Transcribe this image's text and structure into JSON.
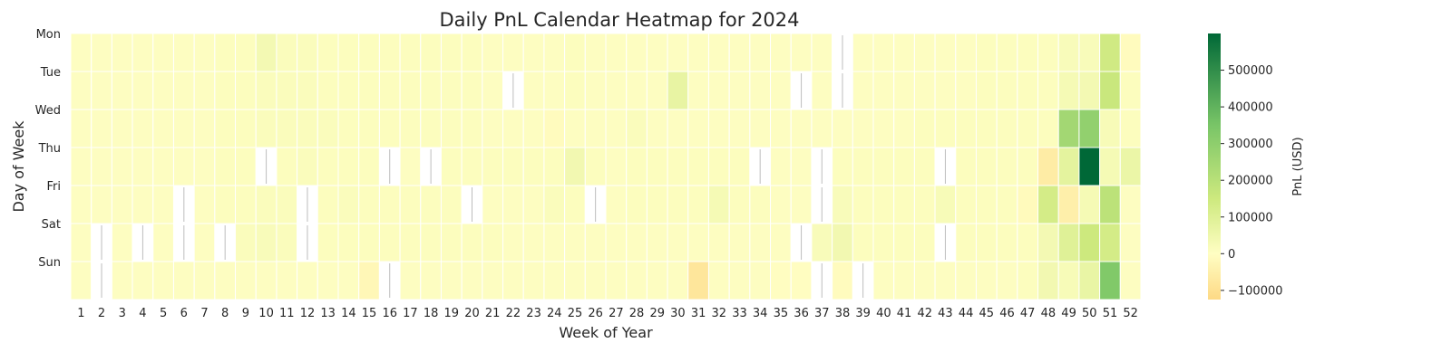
{
  "chart_data": {
    "type": "heatmap",
    "title": "Daily PnL Calendar Heatmap for 2024",
    "xlabel": "Week of Year",
    "ylabel": "Day of Week",
    "y_tick_labels": [
      "Mon",
      "Tue",
      "Wed",
      "Thu",
      "Fri",
      "Sat",
      "Sun"
    ],
    "weeks": [
      1,
      2,
      3,
      4,
      5,
      6,
      7,
      8,
      9,
      10,
      11,
      12,
      13,
      14,
      15,
      16,
      17,
      18,
      19,
      20,
      21,
      22,
      23,
      24,
      25,
      26,
      27,
      28,
      29,
      30,
      31,
      32,
      33,
      34,
      35,
      36,
      37,
      38,
      39,
      40,
      41,
      42,
      43,
      44,
      45,
      46,
      47,
      48,
      49,
      50,
      51,
      52
    ],
    "grid": false,
    "colorbar": {
      "label": "PnL (USD)",
      "range": [
        -125000,
        600000
      ],
      "ticks": [
        -100000,
        0,
        100000,
        200000,
        300000,
        400000,
        500000
      ],
      "tick_labels": [
        "−100000",
        "0",
        "100000",
        "200000",
        "300000",
        "400000",
        "500000"
      ],
      "colors": [
        "#fdd985",
        "#fffec3",
        "#cde97e",
        "#79c567",
        "#006837"
      ]
    },
    "values": [
      [
        5000,
        5000,
        5000,
        5000,
        5000,
        5000,
        5000
      ],
      [
        5000,
        5000,
        5000,
        5000,
        5000,
        null,
        null
      ],
      [
        5000,
        5000,
        5000,
        5000,
        5000,
        5000,
        5000
      ],
      [
        5000,
        5000,
        5000,
        5000,
        5000,
        null,
        5000
      ],
      [
        5000,
        5000,
        5000,
        5000,
        5000,
        5000,
        5000
      ],
      [
        5000,
        5000,
        5000,
        5000,
        null,
        null,
        5000
      ],
      [
        5000,
        5000,
        5000,
        5000,
        5000,
        5000,
        5000
      ],
      [
        10000,
        10000,
        10000,
        10000,
        10000,
        null,
        5000
      ],
      [
        10000,
        10000,
        10000,
        10000,
        10000,
        15000,
        5000
      ],
      [
        35000,
        15000,
        15000,
        null,
        15000,
        20000,
        5000
      ],
      [
        15000,
        15000,
        15000,
        10000,
        15000,
        15000,
        5000
      ],
      [
        15000,
        15000,
        15000,
        15000,
        null,
        null,
        5000
      ],
      [
        10000,
        10000,
        15000,
        10000,
        10000,
        10000,
        5000
      ],
      [
        10000,
        10000,
        10000,
        10000,
        15000,
        10000,
        5000
      ],
      [
        10000,
        10000,
        10000,
        10000,
        10000,
        10000,
        -25000
      ],
      [
        10000,
        10000,
        10000,
        null,
        10000,
        10000,
        null
      ],
      [
        10000,
        10000,
        10000,
        5000,
        10000,
        10000,
        5000
      ],
      [
        10000,
        10000,
        10000,
        null,
        10000,
        10000,
        5000
      ],
      [
        10000,
        10000,
        10000,
        10000,
        10000,
        10000,
        5000
      ],
      [
        10000,
        10000,
        10000,
        10000,
        null,
        10000,
        5000
      ],
      [
        5000,
        5000,
        5000,
        10000,
        5000,
        10000,
        5000
      ],
      [
        5000,
        null,
        5000,
        10000,
        5000,
        5000,
        5000
      ],
      [
        5000,
        5000,
        5000,
        10000,
        5000,
        5000,
        5000
      ],
      [
        5000,
        5000,
        -10000,
        10000,
        15000,
        5000,
        5000
      ],
      [
        10000,
        10000,
        5000,
        40000,
        10000,
        5000,
        5000
      ],
      [
        5000,
        5000,
        5000,
        10000,
        null,
        5000,
        5000
      ],
      [
        5000,
        5000,
        5000,
        5000,
        5000,
        5000,
        5000
      ],
      [
        5000,
        5000,
        15000,
        10000,
        10000,
        5000,
        5000
      ],
      [
        5000,
        5000,
        5000,
        10000,
        10000,
        5000,
        5000
      ],
      [
        5000,
        70000,
        5000,
        10000,
        10000,
        5000,
        5000
      ],
      [
        5000,
        5000,
        5000,
        10000,
        10000,
        5000,
        -80000
      ],
      [
        5000,
        5000,
        5000,
        10000,
        30000,
        5000,
        5000
      ],
      [
        5000,
        5000,
        5000,
        10000,
        10000,
        5000,
        5000
      ],
      [
        5000,
        5000,
        5000,
        null,
        10000,
        5000,
        5000
      ],
      [
        5000,
        5000,
        5000,
        5000,
        5000,
        5000,
        -5000
      ],
      [
        5000,
        null,
        5000,
        5000,
        5000,
        null,
        -5000
      ],
      [
        5000,
        5000,
        5000,
        null,
        null,
        20000,
        null
      ],
      [
        null,
        null,
        5000,
        10000,
        20000,
        40000,
        -10000
      ],
      [
        5000,
        5000,
        5000,
        10000,
        10000,
        10000,
        null
      ],
      [
        5000,
        5000,
        5000,
        10000,
        10000,
        10000,
        5000
      ],
      [
        5000,
        5000,
        5000,
        10000,
        10000,
        10000,
        5000
      ],
      [
        5000,
        5000,
        10000,
        10000,
        10000,
        10000,
        5000
      ],
      [
        5000,
        5000,
        10000,
        null,
        25000,
        null,
        5000
      ],
      [
        5000,
        5000,
        10000,
        10000,
        10000,
        10000,
        5000
      ],
      [
        10000,
        10000,
        10000,
        10000,
        10000,
        10000,
        5000
      ],
      [
        10000,
        10000,
        10000,
        10000,
        10000,
        10000,
        5000
      ],
      [
        10000,
        10000,
        10000,
        10000,
        -15000,
        10000,
        10000
      ],
      [
        10000,
        10000,
        10000,
        -60000,
        130000,
        35000,
        40000
      ],
      [
        20000,
        30000,
        250000,
        80000,
        -50000,
        95000,
        25000
      ],
      [
        20000,
        35000,
        290000,
        600000,
        30000,
        150000,
        65000
      ],
      [
        140000,
        160000,
        25000,
        30000,
        190000,
        130000,
        330000
      ],
      [
        -10000,
        10000,
        10000,
        60000,
        5000,
        5000,
        5000
      ]
    ]
  }
}
